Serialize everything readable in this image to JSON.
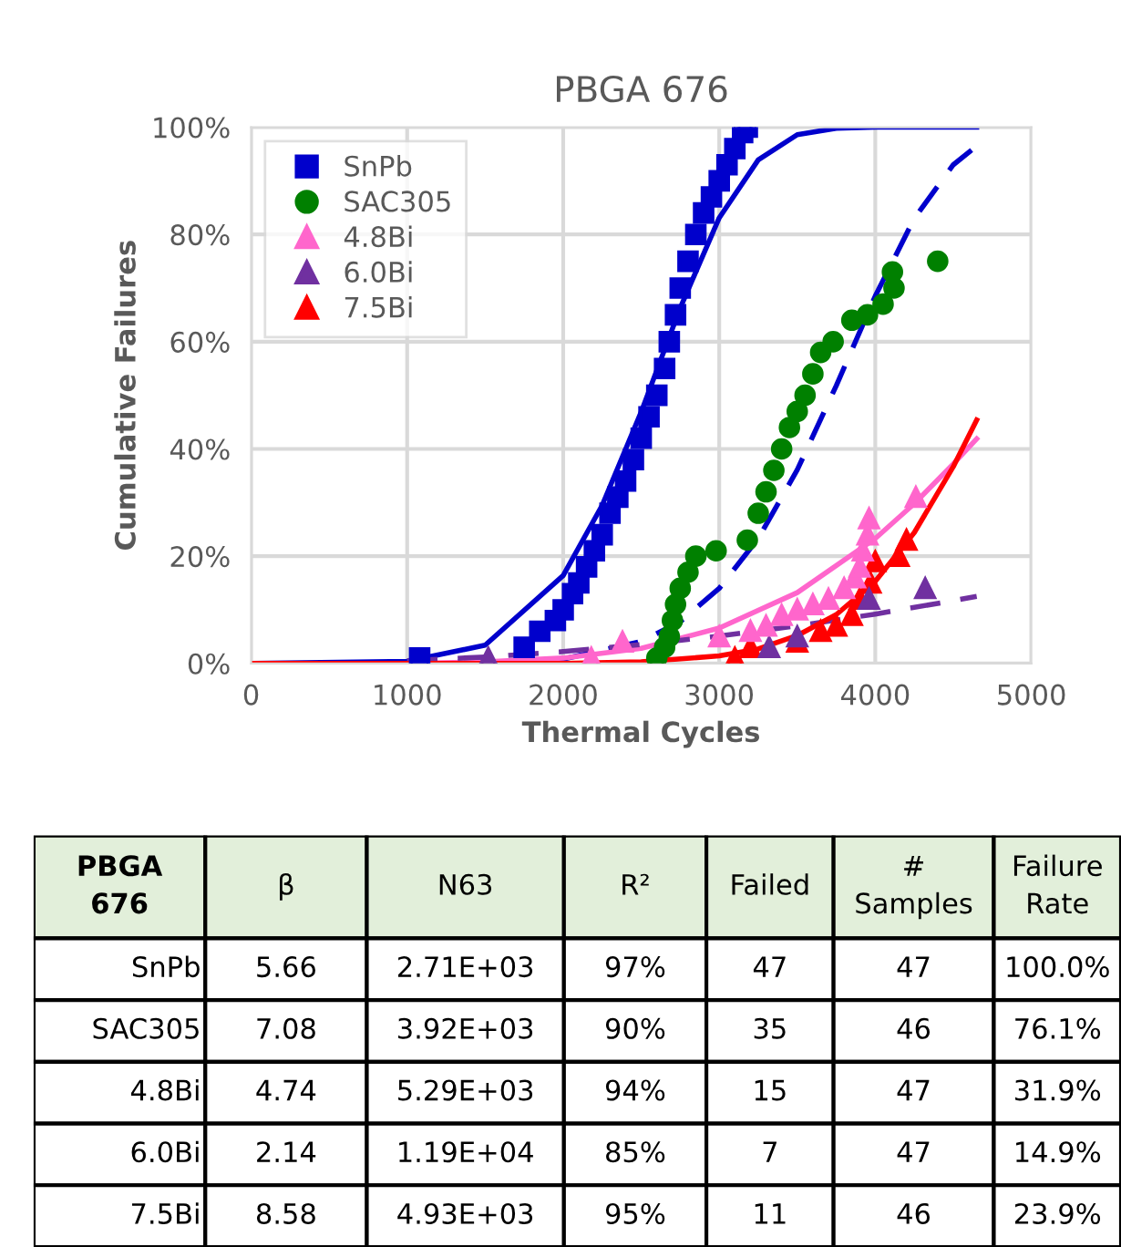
{
  "chart_data": [
    {
      "type": "scatter",
      "title": "PBGA 676",
      "xlabel": "Thermal Cycles",
      "ylabel": "Cumulative Failures",
      "xlim": [
        0,
        5000
      ],
      "xticks": [
        0,
        1000,
        2000,
        3000,
        4000,
        5000
      ],
      "ylim": [
        0,
        100
      ],
      "yticks": [
        {
          "value": 0,
          "label": "0%"
        },
        {
          "value": 20,
          "label": "20%"
        },
        {
          "value": 40,
          "label": "40%"
        },
        {
          "value": 60,
          "label": "60%"
        },
        {
          "value": 80,
          "label": "80%"
        },
        {
          "value": 100,
          "label": "100%"
        }
      ],
      "grid": true,
      "legend": "top left",
      "series": [
        {
          "name": "SnPb",
          "color": "#0000cc",
          "marker": "square",
          "x": [
            1080,
            1750,
            1850,
            1950,
            2000,
            2060,
            2100,
            2150,
            2200,
            2250,
            2300,
            2350,
            2400,
            2450,
            2500,
            2550,
            2600,
            2650,
            2680,
            2720,
            2750,
            2800,
            2850,
            2900,
            2950,
            3000,
            3050,
            3100,
            3150,
            3180
          ],
          "values": [
            1,
            3,
            6,
            8,
            10,
            13,
            15,
            18,
            21,
            24,
            28,
            31,
            34,
            38,
            42,
            46,
            50,
            55,
            60,
            65,
            70,
            75,
            80,
            84,
            87,
            90,
            93,
            96,
            99,
            100
          ]
        },
        {
          "name": "SAC305",
          "color": "#008000",
          "marker": "circle",
          "x": [
            2600,
            2650,
            2680,
            2700,
            2720,
            2750,
            2800,
            2850,
            2980,
            3180,
            3250,
            3300,
            3350,
            3400,
            3450,
            3500,
            3550,
            3600,
            3650,
            3730,
            3850,
            3950,
            4050,
            4120,
            4110,
            4400
          ],
          "values": [
            1,
            3,
            5,
            8,
            11,
            14,
            17,
            20,
            21,
            23,
            28,
            32,
            36,
            40,
            44,
            47,
            50,
            54,
            58,
            60,
            64,
            65,
            67,
            70,
            73,
            75
          ]
        },
        {
          "name": "4.8Bi",
          "color": "#ff66cc",
          "marker": "triangle",
          "x": [
            2180,
            2380,
            3000,
            3200,
            3300,
            3400,
            3500,
            3600,
            3700,
            3800,
            3870,
            3900,
            3920,
            3950,
            3960,
            4260
          ],
          "values": [
            1,
            4,
            5,
            6,
            7,
            9,
            10,
            11,
            12,
            14,
            16,
            18,
            21,
            24,
            27,
            31
          ]
        },
        {
          "name": "6.0Bi",
          "color": "#7030a0",
          "marker": "triangle",
          "x": [
            1520,
            3320,
            3500,
            3960,
            4320
          ],
          "values": [
            1,
            3,
            5,
            12,
            14
          ]
        },
        {
          "name": "7.5Bi",
          "color": "#ff0000",
          "marker": "triangle",
          "x": [
            3100,
            3200,
            3500,
            3650,
            3750,
            3850,
            3900,
            3970,
            4000,
            4150,
            4200
          ],
          "values": [
            1,
            3,
            4,
            6,
            7,
            9,
            12,
            15,
            19,
            20,
            23
          ]
        },
        {
          "type": "line",
          "color": "#0000cc",
          "line_style": "solid",
          "x": [
            0,
            1000,
            1500,
            2000,
            2250,
            2500,
            2750,
            3000,
            3250,
            3500,
            3750,
            4000,
            4650
          ],
          "values": [
            0,
            0.4,
            3.4,
            16.4,
            29.5,
            46.9,
            66.3,
            83.1,
            93.9,
            98.6,
            99.8,
            100,
            100
          ]
        },
        {
          "type": "line",
          "color": "#0000cc",
          "line_style": "dashed",
          "x": [
            1000,
            2000,
            2500,
            2750,
            3000,
            3250,
            3500,
            3750,
            4000,
            4250,
            4500,
            4650
          ],
          "values": [
            0,
            0.8,
            4.1,
            7.8,
            14.0,
            23.3,
            36.1,
            51.8,
            68.5,
            83.0,
            93.0,
            96.5
          ]
        },
        {
          "type": "line",
          "color": "#ff66cc",
          "line_style": "solid",
          "x": [
            1000,
            1500,
            2000,
            2500,
            3000,
            3500,
            4000,
            4250,
            4500,
            4650
          ],
          "values": [
            0,
            0.3,
            1.0,
            2.8,
            6.6,
            13.2,
            23.3,
            29.8,
            37.2,
            41.9
          ]
        },
        {
          "type": "line",
          "color": "#7030a0",
          "line_style": "dashed",
          "x": [
            1000,
            1500,
            2000,
            2500,
            3000,
            3500,
            4000,
            4500,
            4650
          ],
          "values": [
            0.5,
            1.2,
            2.2,
            3.5,
            5.1,
            7.0,
            9.2,
            11.7,
            12.5
          ]
        },
        {
          "type": "line",
          "color": "#ff0000",
          "line_style": "solid",
          "x": [
            0,
            2000,
            2500,
            3000,
            3250,
            3500,
            3750,
            4000,
            4250,
            4500,
            4650
          ],
          "values": [
            0,
            0,
            0.3,
            1.4,
            2.7,
            5.2,
            9.1,
            15.3,
            24.4,
            36.7,
            45.4
          ]
        }
      ]
    },
    {
      "type": "other",
      "categories": [
        "PBGA\n676",
        "β",
        "N63",
        "R²",
        "Failed",
        "#\nSamples",
        "Failure\nRate"
      ],
      "cell_labels": [
        [
          "SnPb",
          "5.66",
          "2.71E+03",
          "97%",
          "47",
          "47",
          "100.0%"
        ],
        [
          "SAC305",
          "7.08",
          "3.92E+03",
          "90%",
          "35",
          "46",
          "76.1%"
        ],
        [
          "4.8Bi",
          "4.74",
          "5.29E+03",
          "94%",
          "15",
          "47",
          "31.9%"
        ],
        [
          "6.0Bi",
          "2.14",
          "1.19E+04",
          "85%",
          "7",
          "47",
          "14.9%"
        ],
        [
          "7.5Bi",
          "8.58",
          "4.93E+03",
          "95%",
          "11",
          "46",
          "23.9%"
        ]
      ]
    }
  ]
}
